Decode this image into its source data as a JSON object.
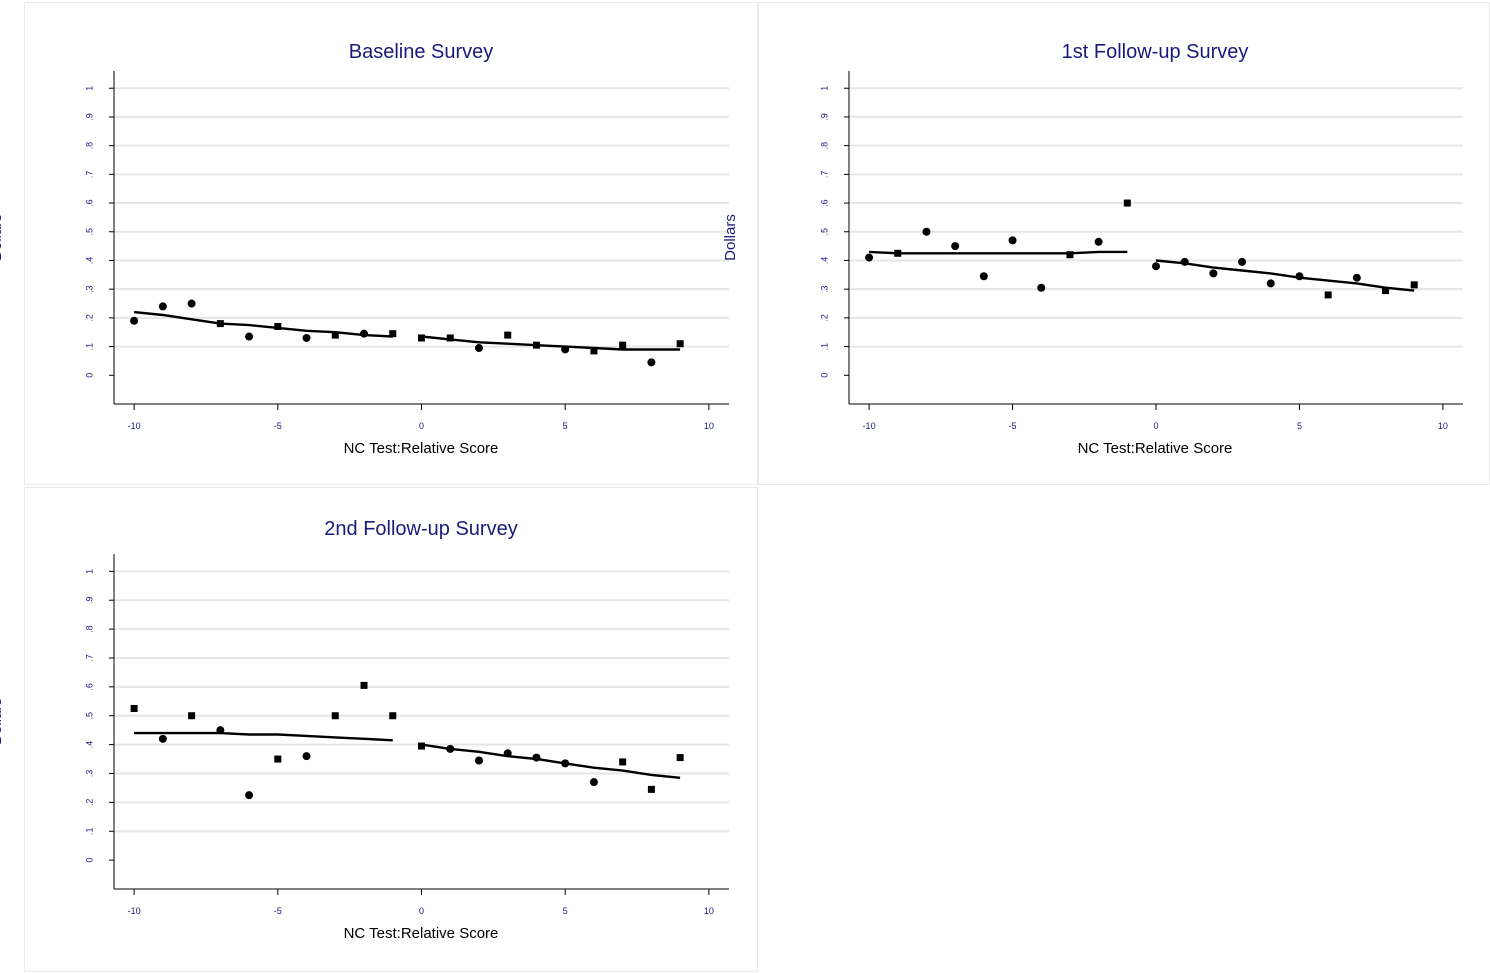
{
  "chart_data": [
    {
      "type": "scatter",
      "title": "Baseline Survey",
      "xlabel": "NC Test:Relative Score",
      "ylabel": "Dollars",
      "xlim": [
        -10.7,
        10.7
      ],
      "ylim": [
        -0.1,
        1.06
      ],
      "xticks": [
        "-10",
        "-5",
        "0",
        "5",
        "10"
      ],
      "yticks": [
        "0",
        ".1",
        ".2",
        ".3",
        ".4",
        ".5",
        ".6",
        ".7",
        ".8",
        ".9",
        "1"
      ],
      "grid": true,
      "points": [
        {
          "x": -10,
          "y": 0.19,
          "m": "o"
        },
        {
          "x": -9,
          "y": 0.24,
          "m": "o"
        },
        {
          "x": -8,
          "y": 0.25,
          "m": "o"
        },
        {
          "x": -7,
          "y": 0.18,
          "m": "s"
        },
        {
          "x": -6,
          "y": 0.135,
          "m": "o"
        },
        {
          "x": -5,
          "y": 0.17,
          "m": "s"
        },
        {
          "x": -4,
          "y": 0.13,
          "m": "o"
        },
        {
          "x": -3,
          "y": 0.14,
          "m": "s"
        },
        {
          "x": -2,
          "y": 0.145,
          "m": "o"
        },
        {
          "x": -1,
          "y": 0.145,
          "m": "s"
        },
        {
          "x": 0,
          "y": 0.13,
          "m": "s"
        },
        {
          "x": 1,
          "y": 0.13,
          "m": "s"
        },
        {
          "x": 2,
          "y": 0.095,
          "m": "o"
        },
        {
          "x": 3,
          "y": 0.14,
          "m": "s"
        },
        {
          "x": 4,
          "y": 0.105,
          "m": "s"
        },
        {
          "x": 5,
          "y": 0.09,
          "m": "o"
        },
        {
          "x": 6,
          "y": 0.085,
          "m": "s"
        },
        {
          "x": 7,
          "y": 0.105,
          "m": "s"
        },
        {
          "x": 8,
          "y": 0.045,
          "m": "o"
        },
        {
          "x": 9,
          "y": 0.11,
          "m": "s"
        }
      ],
      "fit": [
        [
          [
            -10,
            0.22
          ],
          [
            -9,
            0.21
          ],
          [
            -8,
            0.195
          ],
          [
            -7,
            0.18
          ],
          [
            -6,
            0.175
          ],
          [
            -5,
            0.165
          ],
          [
            -4,
            0.155
          ],
          [
            -3,
            0.15
          ],
          [
            -2,
            0.14
          ],
          [
            -1,
            0.135
          ]
        ],
        [
          [
            0,
            0.135
          ],
          [
            1,
            0.125
          ],
          [
            2,
            0.115
          ],
          [
            3,
            0.11
          ],
          [
            4,
            0.105
          ],
          [
            5,
            0.1
          ],
          [
            6,
            0.095
          ],
          [
            7,
            0.09
          ],
          [
            8,
            0.09
          ],
          [
            9,
            0.09
          ]
        ]
      ]
    },
    {
      "type": "scatter",
      "title": "1st Follow-up Survey",
      "xlabel": "NC Test:Relative Score",
      "ylabel": "Dollars",
      "xlim": [
        -10.7,
        10.7
      ],
      "ylim": [
        -0.1,
        1.06
      ],
      "xticks": [
        "-10",
        "-5",
        "0",
        "5",
        "10"
      ],
      "yticks": [
        "0",
        ".1",
        ".2",
        ".3",
        ".4",
        ".5",
        ".6",
        ".7",
        ".8",
        ".9",
        "1"
      ],
      "grid": true,
      "points": [
        {
          "x": -10,
          "y": 0.41,
          "m": "o"
        },
        {
          "x": -9,
          "y": 0.425,
          "m": "s"
        },
        {
          "x": -8,
          "y": 0.5,
          "m": "o"
        },
        {
          "x": -7,
          "y": 0.45,
          "m": "o"
        },
        {
          "x": -6,
          "y": 0.345,
          "m": "o"
        },
        {
          "x": -5,
          "y": 0.47,
          "m": "o"
        },
        {
          "x": -4,
          "y": 0.305,
          "m": "o"
        },
        {
          "x": -3,
          "y": 0.42,
          "m": "s"
        },
        {
          "x": -2,
          "y": 0.465,
          "m": "o"
        },
        {
          "x": -1,
          "y": 0.6,
          "m": "s"
        },
        {
          "x": 0,
          "y": 0.38,
          "m": "o"
        },
        {
          "x": 1,
          "y": 0.395,
          "m": "o"
        },
        {
          "x": 2,
          "y": 0.355,
          "m": "o"
        },
        {
          "x": 3,
          "y": 0.395,
          "m": "o"
        },
        {
          "x": 4,
          "y": 0.32,
          "m": "o"
        },
        {
          "x": 5,
          "y": 0.345,
          "m": "o"
        },
        {
          "x": 6,
          "y": 0.28,
          "m": "s"
        },
        {
          "x": 7,
          "y": 0.34,
          "m": "o"
        },
        {
          "x": 8,
          "y": 0.295,
          "m": "s"
        },
        {
          "x": 9,
          "y": 0.315,
          "m": "s"
        }
      ],
      "fit": [
        [
          [
            -10,
            0.43
          ],
          [
            -9,
            0.425
          ],
          [
            -8,
            0.425
          ],
          [
            -7,
            0.425
          ],
          [
            -6,
            0.425
          ],
          [
            -5,
            0.425
          ],
          [
            -4,
            0.425
          ],
          [
            -3,
            0.425
          ],
          [
            -2,
            0.43
          ],
          [
            -1,
            0.43
          ]
        ],
        [
          [
            0,
            0.4
          ],
          [
            1,
            0.39
          ],
          [
            2,
            0.375
          ],
          [
            3,
            0.365
          ],
          [
            4,
            0.355
          ],
          [
            5,
            0.34
          ],
          [
            6,
            0.33
          ],
          [
            7,
            0.32
          ],
          [
            8,
            0.305
          ],
          [
            9,
            0.295
          ]
        ]
      ]
    },
    {
      "type": "scatter",
      "title": "2nd Follow-up Survey",
      "xlabel": "NC Test:Relative Score",
      "ylabel": "Dollars",
      "xlim": [
        -10.7,
        10.7
      ],
      "ylim": [
        -0.1,
        1.06
      ],
      "xticks": [
        "-10",
        "-5",
        "0",
        "5",
        "10"
      ],
      "yticks": [
        "0",
        ".1",
        ".2",
        ".3",
        ".4",
        ".5",
        ".6",
        ".7",
        ".8",
        ".9",
        "1"
      ],
      "grid": true,
      "points": [
        {
          "x": -10,
          "y": 0.525,
          "m": "s"
        },
        {
          "x": -9,
          "y": 0.42,
          "m": "o"
        },
        {
          "x": -8,
          "y": 0.5,
          "m": "s"
        },
        {
          "x": -7,
          "y": 0.45,
          "m": "o"
        },
        {
          "x": -6,
          "y": 0.225,
          "m": "o"
        },
        {
          "x": -5,
          "y": 0.35,
          "m": "s"
        },
        {
          "x": -4,
          "y": 0.36,
          "m": "o"
        },
        {
          "x": -3,
          "y": 0.5,
          "m": "s"
        },
        {
          "x": -2,
          "y": 0.605,
          "m": "s"
        },
        {
          "x": -1,
          "y": 0.5,
          "m": "s"
        },
        {
          "x": 0,
          "y": 0.395,
          "m": "s"
        },
        {
          "x": 1,
          "y": 0.385,
          "m": "o"
        },
        {
          "x": 2,
          "y": 0.345,
          "m": "o"
        },
        {
          "x": 3,
          "y": 0.37,
          "m": "o"
        },
        {
          "x": 4,
          "y": 0.355,
          "m": "o"
        },
        {
          "x": 5,
          "y": 0.335,
          "m": "o"
        },
        {
          "x": 6,
          "y": 0.27,
          "m": "o"
        },
        {
          "x": 7,
          "y": 0.34,
          "m": "s"
        },
        {
          "x": 8,
          "y": 0.245,
          "m": "s"
        },
        {
          "x": 9,
          "y": 0.355,
          "m": "s"
        }
      ],
      "fit": [
        [
          [
            -10,
            0.44
          ],
          [
            -9,
            0.44
          ],
          [
            -8,
            0.44
          ],
          [
            -7,
            0.44
          ],
          [
            -6,
            0.435
          ],
          [
            -5,
            0.435
          ],
          [
            -4,
            0.43
          ],
          [
            -3,
            0.425
          ],
          [
            -2,
            0.42
          ],
          [
            -1,
            0.415
          ]
        ],
        [
          [
            0,
            0.4
          ],
          [
            1,
            0.385
          ],
          [
            2,
            0.375
          ],
          [
            3,
            0.36
          ],
          [
            4,
            0.35
          ],
          [
            5,
            0.335
          ],
          [
            6,
            0.32
          ],
          [
            7,
            0.31
          ],
          [
            8,
            0.295
          ],
          [
            9,
            0.285
          ]
        ]
      ]
    }
  ]
}
